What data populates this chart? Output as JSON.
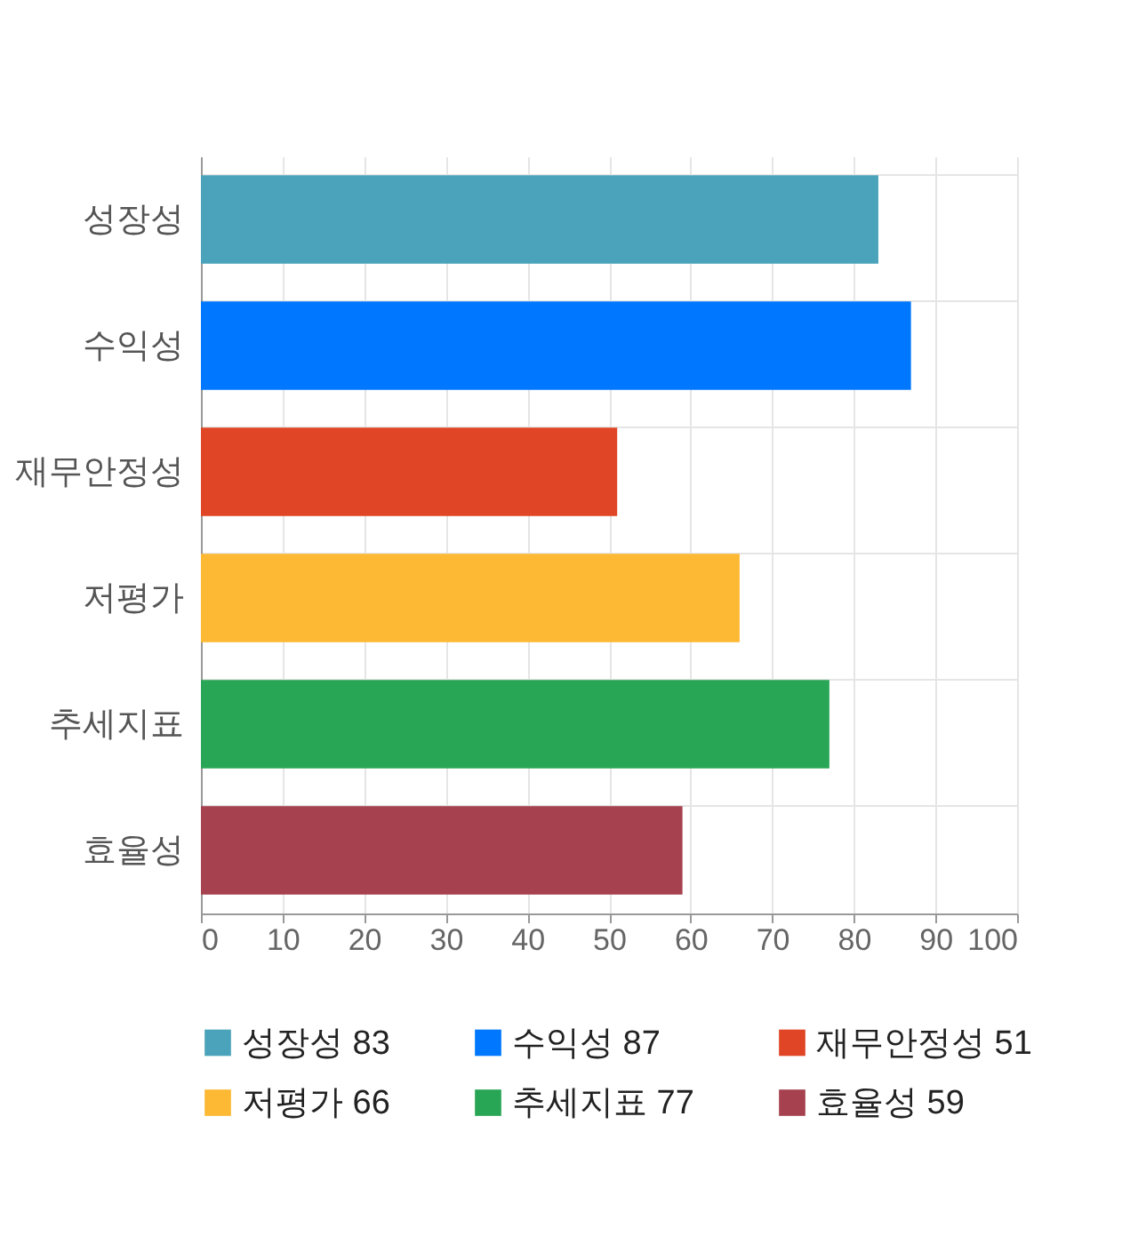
{
  "chart_data": {
    "type": "bar",
    "orientation": "horizontal",
    "categories": [
      "성장성",
      "수익성",
      "재무안정성",
      "저평가",
      "추세지표",
      "효율성"
    ],
    "series": [
      {
        "name": "성장성 83",
        "color": "#4aa3ba",
        "values": [
          83,
          null,
          null,
          null,
          null,
          null
        ]
      },
      {
        "name": "수익성 87",
        "color": "#0077ff",
        "values": [
          null,
          87,
          null,
          null,
          null,
          null
        ]
      },
      {
        "name": "재무안정성 51",
        "color": "#e04525",
        "values": [
          null,
          null,
          51,
          null,
          null,
          null
        ]
      },
      {
        "name": "저평가 66",
        "color": "#fdb933",
        "values": [
          null,
          null,
          null,
          66,
          null,
          null
        ]
      },
      {
        "name": "추세지표 77",
        "color": "#29a655",
        "values": [
          null,
          null,
          null,
          null,
          77,
          null
        ]
      },
      {
        "name": "효율성 59",
        "color": "#a6424f",
        "values": [
          null,
          null,
          null,
          null,
          null,
          59
        ]
      }
    ],
    "xlim": [
      0,
      100
    ],
    "xticks": [
      0,
      10,
      20,
      30,
      40,
      50,
      60,
      70,
      80,
      90,
      100
    ],
    "grid": true,
    "legend": "bottom"
  }
}
